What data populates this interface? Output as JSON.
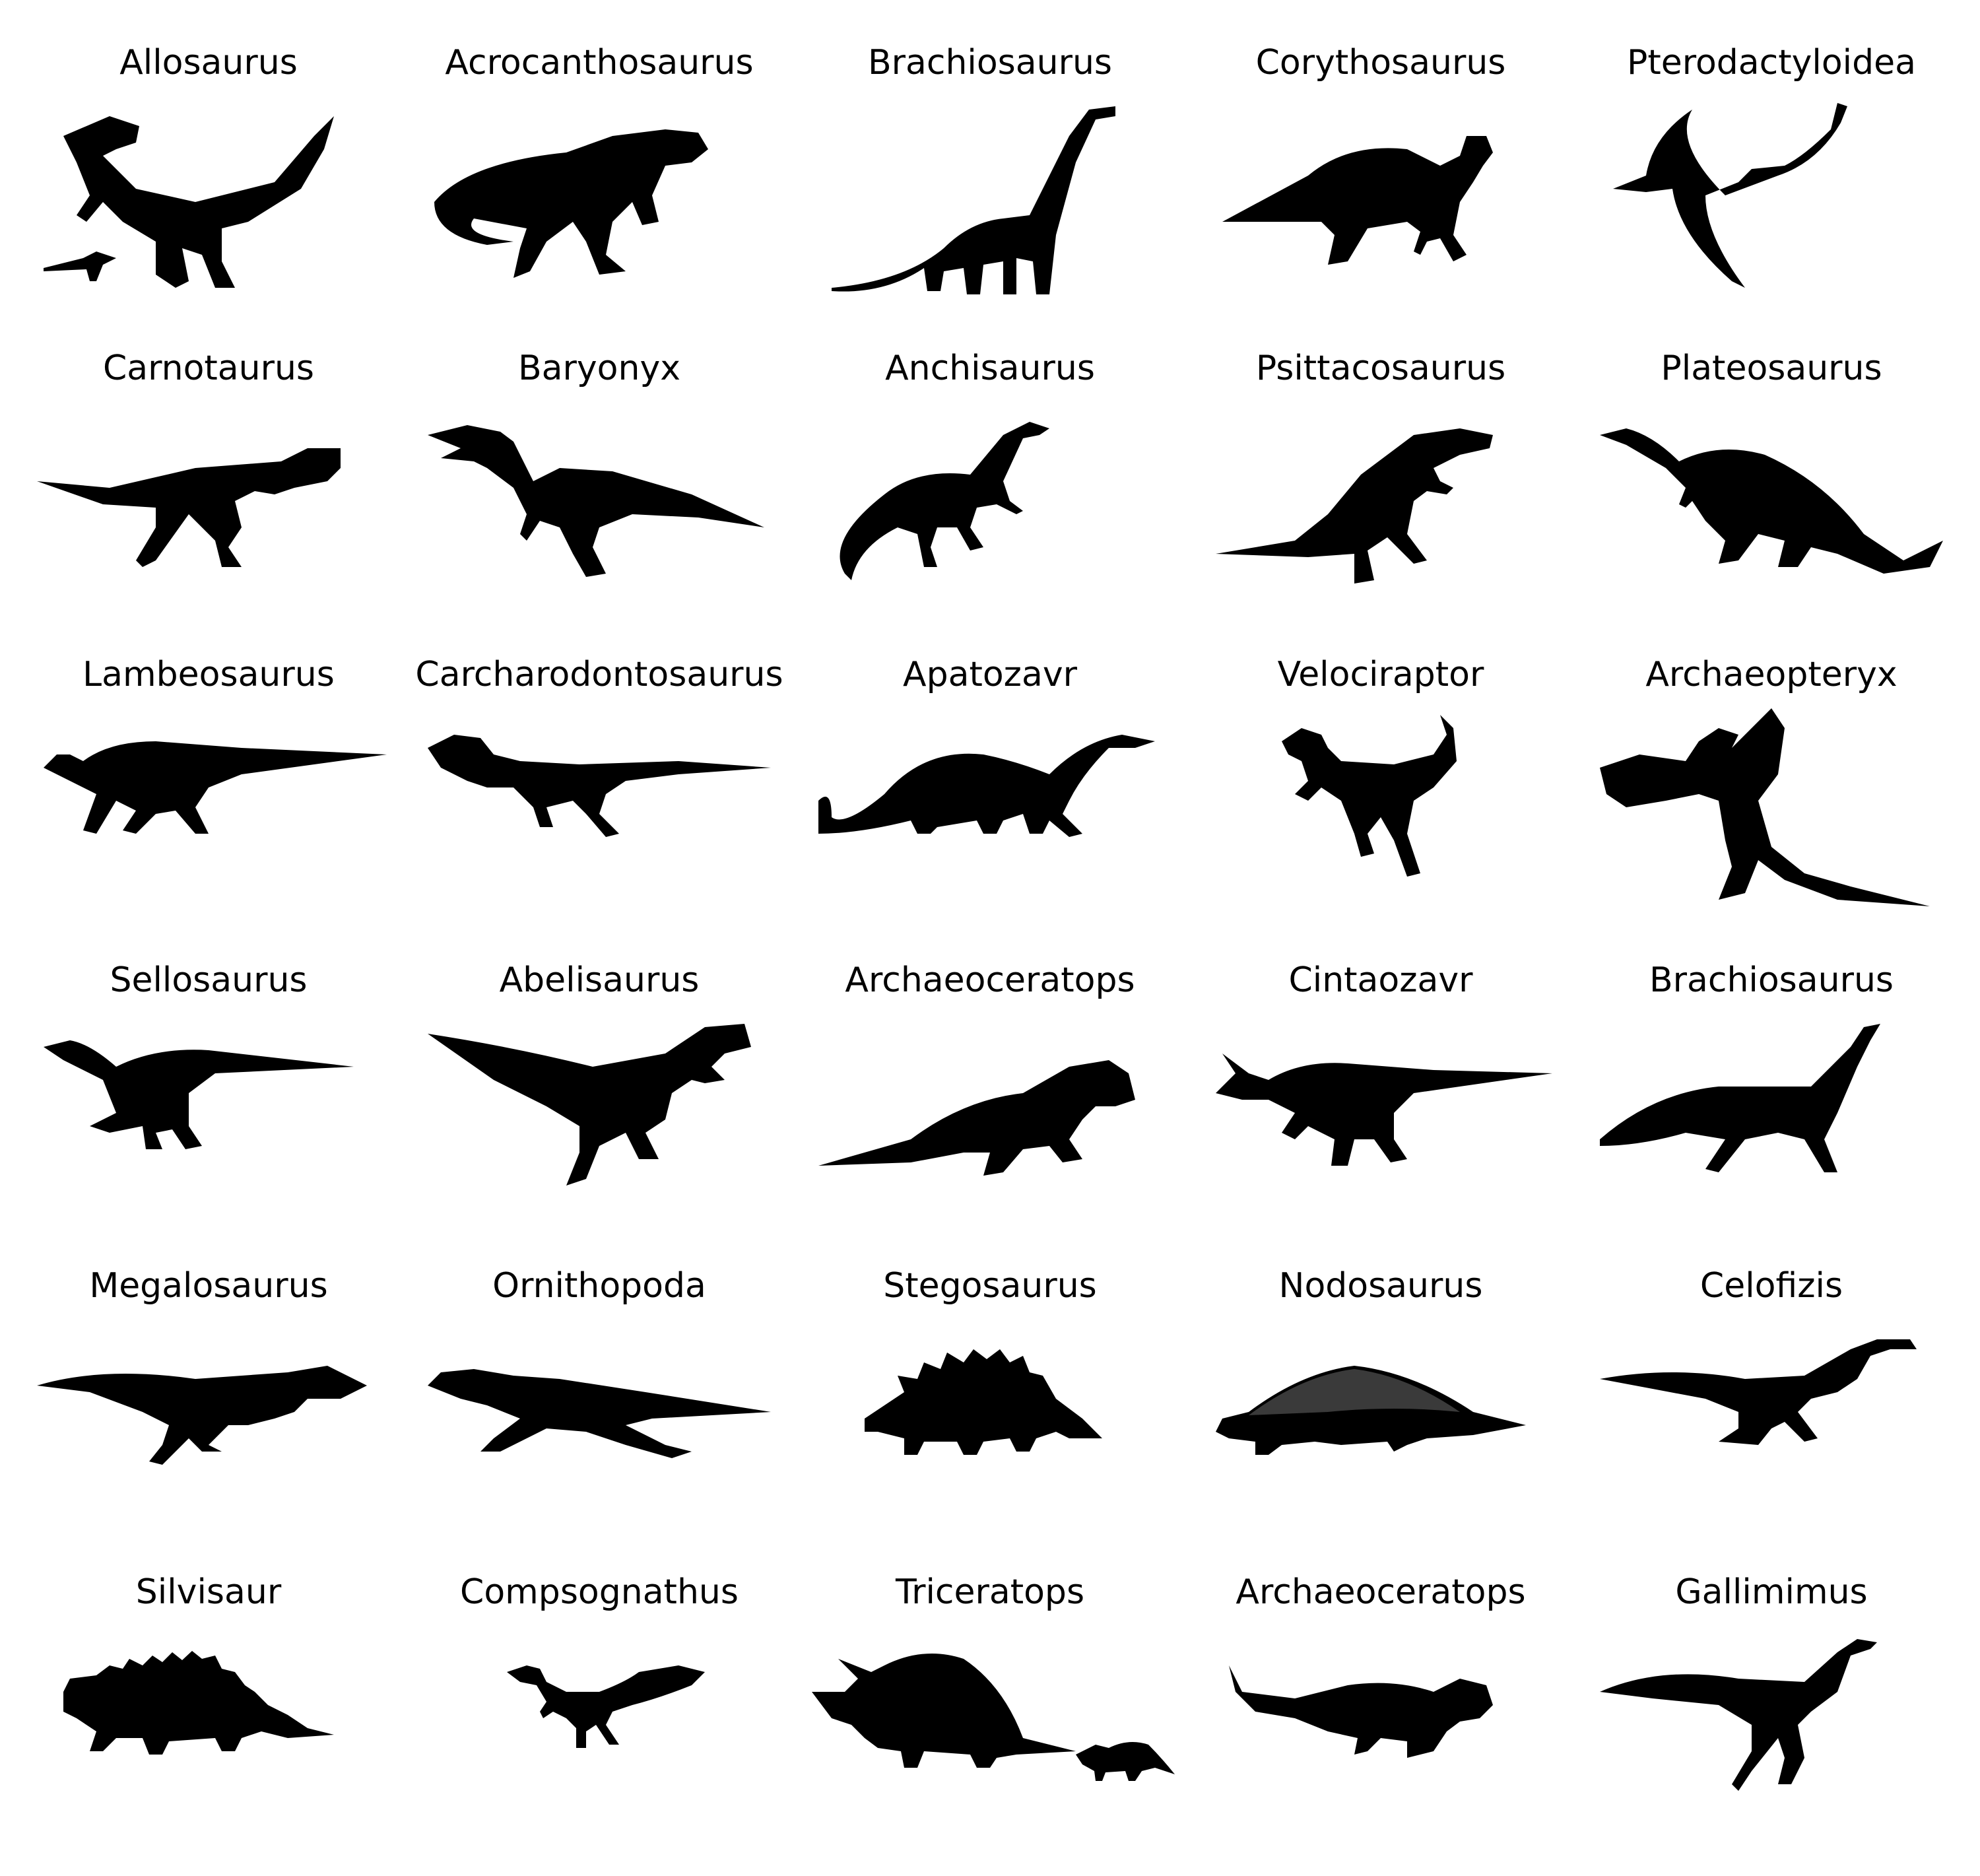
{
  "colors": {
    "background": "#ffffff",
    "silhouette": "#000000"
  },
  "dinosaurs": [
    {
      "label": "Allosaurus",
      "icon": "allosaurus-silhouette-icon"
    },
    {
      "label": "Acrocanthosaurus",
      "icon": "acrocanthosaurus-silhouette-icon"
    },
    {
      "label": "Brachiosaurus",
      "icon": "brachiosaurus-silhouette-icon"
    },
    {
      "label": "Corythosaurus",
      "icon": "corythosaurus-silhouette-icon"
    },
    {
      "label": "Pterodactyloidea",
      "icon": "pterodactyloidea-silhouette-icon"
    },
    {
      "label": "Carnotaurus",
      "icon": "carnotaurus-silhouette-icon"
    },
    {
      "label": "Baryonyx",
      "icon": "baryonyx-silhouette-icon"
    },
    {
      "label": "Anchisaurus",
      "icon": "anchisaurus-silhouette-icon"
    },
    {
      "label": "Psittacosaurus",
      "icon": "psittacosaurus-silhouette-icon"
    },
    {
      "label": "Plateosaurus",
      "icon": "plateosaurus-silhouette-icon"
    },
    {
      "label": "Lambeosaurus",
      "icon": "lambeosaurus-silhouette-icon"
    },
    {
      "label": "Carcharodontosaurus",
      "icon": "carcharodontosaurus-silhouette-icon"
    },
    {
      "label": "Apatozavr",
      "icon": "apatozavr-silhouette-icon"
    },
    {
      "label": "Velociraptor",
      "icon": "velociraptor-silhouette-icon"
    },
    {
      "label": "Archaeopteryx",
      "icon": "archaeopteryx-silhouette-icon"
    },
    {
      "label": "Sellosaurus",
      "icon": "sellosaurus-silhouette-icon"
    },
    {
      "label": "Abelisaurus",
      "icon": "abelisaurus-silhouette-icon"
    },
    {
      "label": "Archaeoceratops",
      "icon": "archaeoceratops-silhouette-icon"
    },
    {
      "label": "Cintaozavr",
      "icon": "cintaozavr-silhouette-icon"
    },
    {
      "label": "Brachiosaurus",
      "icon": "brachiosaurus-silhouette-icon"
    },
    {
      "label": "Megalosaurus",
      "icon": "megalosaurus-silhouette-icon"
    },
    {
      "label": "Ornithopoda",
      "icon": "ornithopoda-silhouette-icon"
    },
    {
      "label": "Stegosaurus",
      "icon": "stegosaurus-silhouette-icon"
    },
    {
      "label": "Nodosaurus",
      "icon": "nodosaurus-silhouette-icon"
    },
    {
      "label": "Celofizis",
      "icon": "celofizis-silhouette-icon"
    },
    {
      "label": "Silvisaur",
      "icon": "silvisaur-silhouette-icon"
    },
    {
      "label": "Compsognathus",
      "icon": "compsognathus-silhouette-icon"
    },
    {
      "label": "Triceratops",
      "icon": "triceratops-silhouette-icon"
    },
    {
      "label": "Archaeoceratops",
      "icon": "archaeoceratops-silhouette-icon"
    },
    {
      "label": "Gallimimus",
      "icon": "gallimimus-silhouette-icon"
    }
  ]
}
